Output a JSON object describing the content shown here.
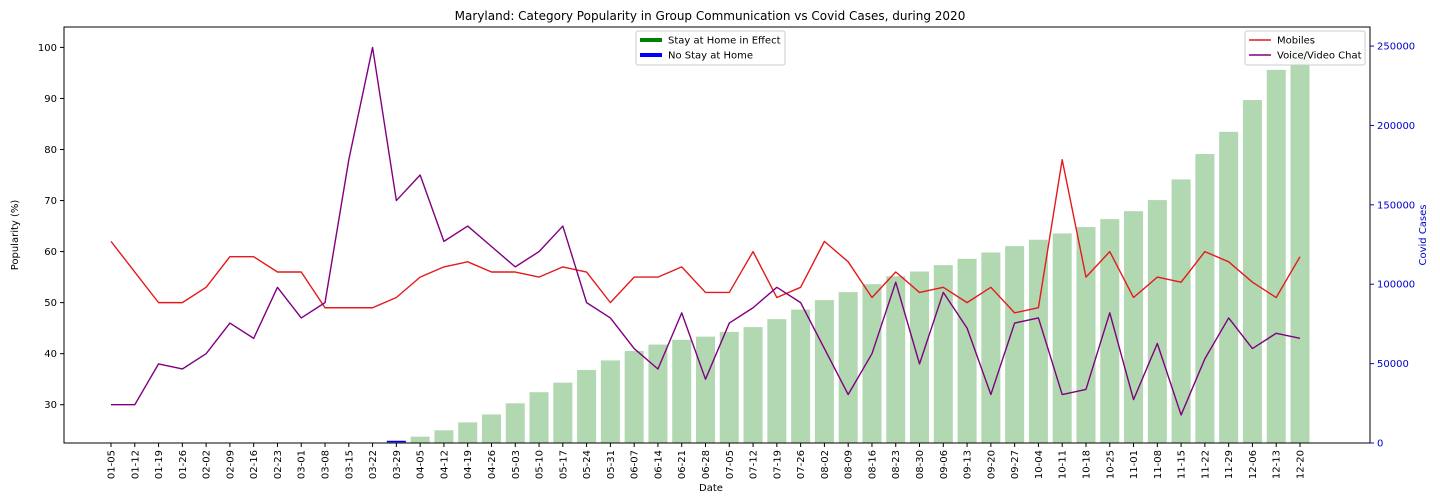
{
  "chart_data": {
    "type": "bar+line",
    "title": "Maryland: Category Popularity in Group Communication vs Covid Cases, during 2020",
    "xlabel": "Date",
    "ylabel": "Popularity (%)",
    "y2label": "Covid Cases",
    "ylim": [
      22.5,
      104
    ],
    "y2lim": [
      0,
      262000
    ],
    "yticks": [
      30,
      40,
      50,
      60,
      70,
      80,
      90,
      100
    ],
    "y2ticks": [
      0,
      50000,
      100000,
      150000,
      200000,
      250000
    ],
    "categories": [
      "01-05",
      "01-12",
      "01-19",
      "01-26",
      "02-02",
      "02-09",
      "02-16",
      "02-23",
      "03-01",
      "03-08",
      "03-15",
      "03-22",
      "03-29",
      "04-05",
      "04-12",
      "04-19",
      "04-26",
      "05-03",
      "05-10",
      "05-17",
      "05-24",
      "05-31",
      "06-07",
      "06-14",
      "06-21",
      "06-28",
      "07-05",
      "07-12",
      "07-19",
      "07-26",
      "08-02",
      "08-09",
      "08-16",
      "08-23",
      "08-30",
      "09-06",
      "09-13",
      "09-20",
      "09-27",
      "10-04",
      "10-11",
      "10-18",
      "10-25",
      "11-01",
      "11-08",
      "11-15",
      "11-22",
      "11-29",
      "12-06",
      "12-13",
      "12-20"
    ],
    "series": [
      {
        "name": "Mobiles",
        "kind": "line",
        "axis": "left",
        "color": "#e41a1c",
        "values": [
          62,
          56,
          50,
          50,
          53,
          59,
          59,
          56,
          56,
          49,
          49,
          49,
          51,
          55,
          57,
          58,
          56,
          56,
          55,
          57,
          56,
          50,
          55,
          55,
          57,
          52,
          52,
          60,
          51,
          53,
          62,
          58,
          51,
          56,
          52,
          53,
          50,
          53,
          48,
          49,
          78,
          55,
          60,
          51,
          55,
          54,
          60,
          58,
          54,
          51,
          59
        ]
      },
      {
        "name": "Voice/Video Chat",
        "kind": "line",
        "axis": "left",
        "color": "#800080",
        "values": [
          30,
          30,
          38,
          37,
          40,
          46,
          43,
          53,
          47,
          50,
          78,
          100,
          70,
          75,
          62,
          65,
          61,
          57,
          60,
          65,
          50,
          47,
          41,
          37,
          48,
          35,
          46,
          49,
          53,
          50,
          41,
          32,
          40,
          54,
          38,
          52,
          45,
          32,
          46,
          47,
          32,
          33,
          48,
          31,
          42,
          28,
          39,
          47,
          41,
          44,
          43
        ]
      },
      {
        "name": "Covid Cases",
        "kind": "bar",
        "axis": "right",
        "color": "#b2d8b2",
        "values": [
          0,
          0,
          0,
          0,
          0,
          0,
          0,
          0,
          0,
          0,
          0,
          0,
          1000,
          4000,
          8000,
          13000,
          18000,
          25000,
          32000,
          38000,
          46000,
          52000,
          58000,
          62000,
          65000,
          67000,
          70000,
          73000,
          78000,
          84000,
          90000,
          95000,
          100000,
          105000,
          108000,
          112000,
          116000,
          120000,
          124000,
          128000,
          132000,
          136000,
          141000,
          146000,
          153000,
          166000,
          182000,
          196000,
          216000,
          235000,
          250000
        ]
      }
    ],
    "legends": [
      {
        "placement": "top-center",
        "entries": [
          {
            "label": "Stay at Home in Effect",
            "color": "#008000"
          },
          {
            "label": "No Stay at Home",
            "color": "#0000ff"
          }
        ]
      },
      {
        "placement": "top-right",
        "entries": [
          {
            "label": "Mobiles",
            "color": "#e41a1c"
          },
          {
            "label": "Voice/Video Chat",
            "color": "#800080"
          }
        ]
      }
    ],
    "grid": false
  }
}
